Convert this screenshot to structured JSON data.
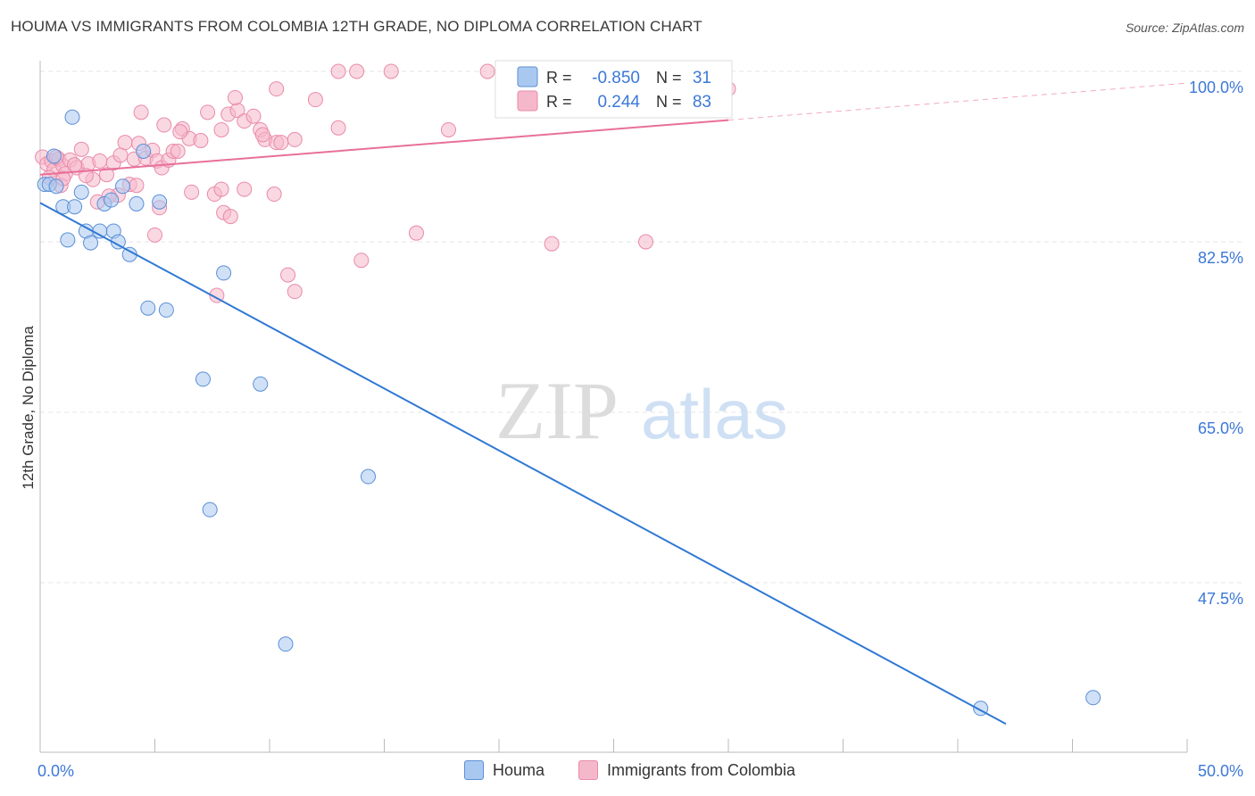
{
  "header": {
    "title": "HOUMA VS IMMIGRANTS FROM COLOMBIA 12TH GRADE, NO DIPLOMA CORRELATION CHART",
    "source": "Source: ZipAtlas.com"
  },
  "watermark": {
    "part1": "ZIP",
    "part2": "atlas"
  },
  "colors": {
    "houma_fill": "#a9c8f0",
    "houma_stroke": "#5b8fd6",
    "houma_line": "#2f78d3",
    "colombia_fill": "#f5b8cb",
    "colombia_stroke": "#e98aaa",
    "colombia_line": "#e8709a",
    "value_text": "#3c78d8",
    "grid": "#e6e6e6"
  },
  "legend_stats": {
    "rows": [
      {
        "r_label": "R =",
        "r_value": "-0.850",
        "n_label": "N =",
        "n_value": "31"
      },
      {
        "r_label": "R =",
        "r_value": "0.244",
        "n_label": "N =",
        "n_value": "83"
      }
    ]
  },
  "chart_data": {
    "type": "scatter",
    "title": "HOUMA VS IMMIGRANTS FROM COLOMBIA 12TH GRADE, NO DIPLOMA CORRELATION CHART",
    "xlabel": "",
    "ylabel": "12th Grade, No Diploma",
    "xlim": [
      0,
      50
    ],
    "ylim": [
      33,
      102
    ],
    "x_tick_labels": [
      "0.0%",
      "50.0%"
    ],
    "y_ticks": [
      47.5,
      65.0,
      82.5,
      100.0
    ],
    "y_tick_labels": [
      "47.5%",
      "65.0%",
      "82.5%",
      "100.0%"
    ],
    "grid": true,
    "legend_position": "bottom",
    "series": [
      {
        "name": "Houma",
        "r": -0.85,
        "n": 31,
        "trend": {
          "x0": 0,
          "y0": 86.5,
          "x1": 42.1,
          "y1": 33
        },
        "points": [
          [
            1.4,
            95.3
          ],
          [
            0.2,
            88.4
          ],
          [
            0.4,
            88.4
          ],
          [
            0.7,
            88.2
          ],
          [
            1.8,
            87.6
          ],
          [
            1.0,
            86.1
          ],
          [
            1.5,
            86.1
          ],
          [
            2.8,
            86.4
          ],
          [
            3.1,
            86.8
          ],
          [
            4.2,
            86.4
          ],
          [
            5.2,
            86.6
          ],
          [
            1.2,
            82.7
          ],
          [
            2.0,
            83.6
          ],
          [
            2.2,
            82.4
          ],
          [
            2.6,
            83.6
          ],
          [
            3.2,
            83.6
          ],
          [
            3.4,
            82.5
          ],
          [
            3.9,
            81.2
          ],
          [
            4.5,
            91.8
          ],
          [
            3.6,
            88.2
          ],
          [
            4.7,
            75.7
          ],
          [
            5.5,
            75.5
          ],
          [
            8.0,
            79.3
          ],
          [
            7.1,
            68.4
          ],
          [
            9.6,
            67.9
          ],
          [
            7.4,
            55.0
          ],
          [
            14.3,
            58.4
          ],
          [
            10.7,
            41.2
          ],
          [
            41.0,
            34.6
          ],
          [
            45.9,
            35.7
          ],
          [
            0.6,
            91.3
          ]
        ]
      },
      {
        "name": "Immigrants from Colombia",
        "r": 0.244,
        "n": 83,
        "trend": {
          "x0": 0,
          "y0": 89.4,
          "x1": 30.0,
          "y1": 95.0,
          "x_dash_end": 50,
          "y_dash_end": 98.8
        },
        "points": [
          [
            0.1,
            91.2
          ],
          [
            0.3,
            90.5
          ],
          [
            0.5,
            90.8
          ],
          [
            0.6,
            89.9
          ],
          [
            0.8,
            91.0
          ],
          [
            1.0,
            90.3
          ],
          [
            1.1,
            89.5
          ],
          [
            1.3,
            90.9
          ],
          [
            1.6,
            90.1
          ],
          [
            1.8,
            92.0
          ],
          [
            0.4,
            89.1
          ],
          [
            0.9,
            88.3
          ],
          [
            2.1,
            90.5
          ],
          [
            2.3,
            88.9
          ],
          [
            2.6,
            90.8
          ],
          [
            2.9,
            89.4
          ],
          [
            3.2,
            90.6
          ],
          [
            3.5,
            91.4
          ],
          [
            3.7,
            92.7
          ],
          [
            3.9,
            88.4
          ],
          [
            4.1,
            91.0
          ],
          [
            4.3,
            92.6
          ],
          [
            4.6,
            91.1
          ],
          [
            4.9,
            91.9
          ],
          [
            5.1,
            90.8
          ],
          [
            5.3,
            90.1
          ],
          [
            5.6,
            90.9
          ],
          [
            5.8,
            91.8
          ],
          [
            6.0,
            91.8
          ],
          [
            4.4,
            95.8
          ],
          [
            5.4,
            94.5
          ],
          [
            6.2,
            94.1
          ],
          [
            6.5,
            93.1
          ],
          [
            7.0,
            92.9
          ],
          [
            7.3,
            95.8
          ],
          [
            7.9,
            94.0
          ],
          [
            8.2,
            95.6
          ],
          [
            8.6,
            96.0
          ],
          [
            8.9,
            94.9
          ],
          [
            9.3,
            95.4
          ],
          [
            9.6,
            94.0
          ],
          [
            9.8,
            93.0
          ],
          [
            10.3,
            92.7
          ],
          [
            10.5,
            92.7
          ],
          [
            8.5,
            97.3
          ],
          [
            10.3,
            98.2
          ],
          [
            12.0,
            97.1
          ],
          [
            13.0,
            94.2
          ],
          [
            13.0,
            100.0
          ],
          [
            13.8,
            100.0
          ],
          [
            15.3,
            100.0
          ],
          [
            19.5,
            100.0
          ],
          [
            22.0,
            100.0
          ],
          [
            27.8,
            100.0
          ],
          [
            30.0,
            98.2
          ],
          [
            17.8,
            94.0
          ],
          [
            2.5,
            86.6
          ],
          [
            3.4,
            87.3
          ],
          [
            4.2,
            88.3
          ],
          [
            6.6,
            87.6
          ],
          [
            7.6,
            87.4
          ],
          [
            7.9,
            87.9
          ],
          [
            8.9,
            87.9
          ],
          [
            10.2,
            87.4
          ],
          [
            5.2,
            86.0
          ],
          [
            8.0,
            85.5
          ],
          [
            8.3,
            85.1
          ],
          [
            5.0,
            83.2
          ],
          [
            16.4,
            83.4
          ],
          [
            22.3,
            82.3
          ],
          [
            26.4,
            82.5
          ],
          [
            14.0,
            80.6
          ],
          [
            10.8,
            79.1
          ],
          [
            11.1,
            77.4
          ],
          [
            7.7,
            77.0
          ],
          [
            1.5,
            90.4
          ],
          [
            2.0,
            89.3
          ],
          [
            0.7,
            91.2
          ],
          [
            3.0,
            87.2
          ],
          [
            9.7,
            93.5
          ],
          [
            6.1,
            93.8
          ],
          [
            11.1,
            93.0
          ],
          [
            1.0,
            89.0
          ]
        ]
      }
    ]
  }
}
